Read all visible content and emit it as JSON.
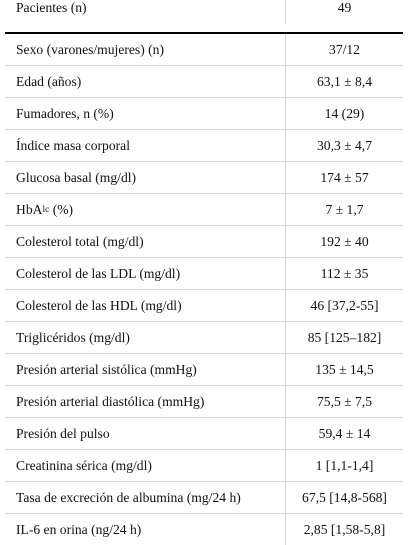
{
  "table": {
    "header": {
      "label": "Pacientes (n)",
      "value": "49"
    },
    "rows": [
      {
        "label": "Sexo (varones/mujeres) (n)",
        "value": "37/12"
      },
      {
        "label": "Edad (años)",
        "value": "63,1 ± 8,4"
      },
      {
        "label": "Fumadores, n (%)",
        "value": "14 (29)"
      },
      {
        "label": "Índice masa corporal",
        "value": "30,3 ± 4,7"
      },
      {
        "label": "Glucosa basal (mg/dl)",
        "value": "174 ± 57"
      },
      {
        "label_main": "HbA",
        "label_sub": "lc",
        "label_tail": " (%)",
        "value": "7 ± 1,7"
      },
      {
        "label": "Colesterol total (mg/dl)",
        "value": "192 ± 40"
      },
      {
        "label": "Colesterol de las LDL (mg/dl)",
        "value": "112 ± 35"
      },
      {
        "label": "Colesterol de las HDL (mg/dl)",
        "value": "46 [37,2-55]"
      },
      {
        "label": "Triglicéridos (mg/dl)",
        "value": "85 [125–182]"
      },
      {
        "label": "Presión arterial sistólica (mmHg)",
        "value": "135 ± 14,5"
      },
      {
        "label": "Presión arterial diastólica (mmHg)",
        "value": "75,5 ± 7,5"
      },
      {
        "label": "Presión del pulso",
        "value": "59,4 ± 14"
      },
      {
        "label": "Creatinina sérica (mg/dl)",
        "value": "1 [1,1-1,4]"
      },
      {
        "label": "Tasa de excreción de albumina (mg/24 h)",
        "value": "67,5 [14,8-568]"
      },
      {
        "label": "IL-6 en orina (ng/24 h)",
        "value": "2,85 [1,58-5,8]"
      }
    ]
  }
}
